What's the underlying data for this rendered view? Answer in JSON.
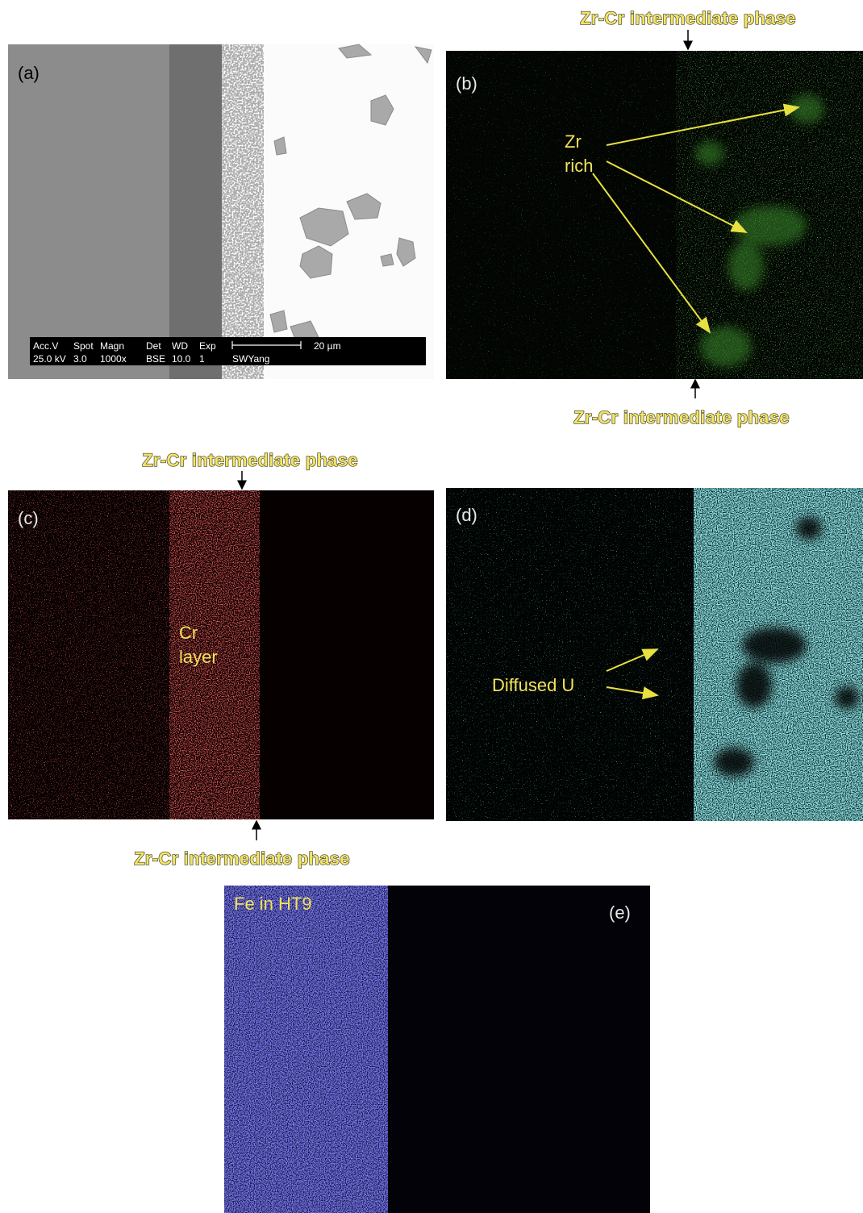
{
  "figure": {
    "panels": {
      "a": {
        "label": "(a)",
        "info_bar": {
          "headers": [
            "Acc.V",
            "Spot",
            "Magn",
            "Det",
            "WD",
            "Exp"
          ],
          "values": [
            "25.0 kV",
            "3.0",
            "1000x",
            "BSE",
            "10.0",
            "1"
          ],
          "scale": "20 µm",
          "operator": "SWYang"
        }
      },
      "b": {
        "label": "(b)",
        "annotation": [
          "Zr",
          "rich"
        ],
        "top_caption": "Zr-Cr intermediate phase",
        "bottom_caption": "Zr-Cr intermediate phase"
      },
      "c": {
        "label": "(c)",
        "annotation": [
          "Cr",
          "layer"
        ],
        "top_caption": "Zr-Cr intermediate phase",
        "bottom_caption": "Zr-Cr intermediate phase"
      },
      "d": {
        "label": "(d)",
        "annotation": "Diffused U"
      },
      "e": {
        "label": "(e)",
        "annotation": "Fe in HT9"
      }
    }
  }
}
